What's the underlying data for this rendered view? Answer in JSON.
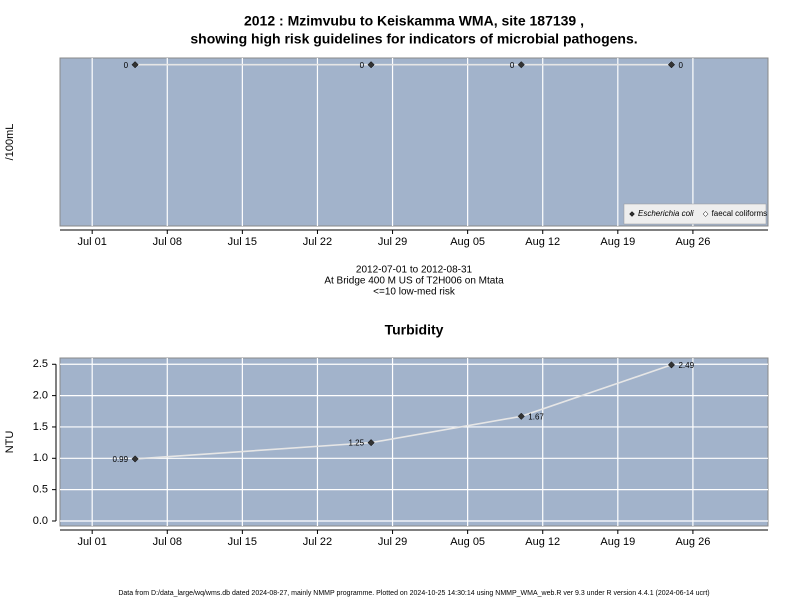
{
  "chart_data": [
    {
      "type": "line",
      "title": [
        "2012 : Mzimvubu to Keiskamma WMA, site 187139 ,",
        "showing high risk guidelines for indicators of microbial pathogens."
      ],
      "ylabel": "/100mL",
      "notes": [
        "2012-07-01 to 2012-08-31",
        "At Bridge 400 M US of T2H006 on Mtata",
        "<=10 low-med risk"
      ],
      "x": [
        "2012-07-05",
        "2012-07-27",
        "2012-08-10",
        "2012-08-24"
      ],
      "series": [
        {
          "name": "Escherichia coli",
          "color": "#333333",
          "values": [
            0,
            0,
            0,
            0
          ]
        },
        {
          "name": "faecal coliforms",
          "color": "#ffffff",
          "values": [
            null,
            null,
            null,
            null
          ]
        }
      ],
      "xlim": [
        "2012-06-28",
        "2012-09-02"
      ],
      "xticks": [
        {
          "value": "2012-07-01",
          "label": "Jul 01"
        },
        {
          "value": "2012-07-08",
          "label": "Jul 08"
        },
        {
          "value": "2012-07-15",
          "label": "Jul 15"
        },
        {
          "value": "2012-07-22",
          "label": "Jul 22"
        },
        {
          "value": "2012-07-29",
          "label": "Jul 29"
        },
        {
          "value": "2012-08-05",
          "label": "Aug 05"
        },
        {
          "value": "2012-08-12",
          "label": "Aug 12"
        },
        {
          "value": "2012-08-19",
          "label": "Aug 19"
        },
        {
          "value": "2012-08-26",
          "label": "Aug 26"
        }
      ],
      "ylim": [
        -24,
        1
      ],
      "legend": "bottom-right",
      "grid": true
    },
    {
      "type": "line",
      "title": [
        "Turbidity"
      ],
      "ylabel": "NTU",
      "x": [
        "2012-07-05",
        "2012-07-27",
        "2012-08-10",
        "2012-08-24"
      ],
      "series": [
        {
          "name": "Turbidity",
          "color": "#333333",
          "values": [
            0.99,
            1.25,
            1.67,
            2.49
          ]
        }
      ],
      "xlim": [
        "2012-06-28",
        "2012-09-02"
      ],
      "xticks": [
        {
          "value": "2012-07-01",
          "label": "Jul 01"
        },
        {
          "value": "2012-07-08",
          "label": "Jul 08"
        },
        {
          "value": "2012-07-15",
          "label": "Jul 15"
        },
        {
          "value": "2012-07-22",
          "label": "Jul 22"
        },
        {
          "value": "2012-07-29",
          "label": "Jul 29"
        },
        {
          "value": "2012-08-05",
          "label": "Aug 05"
        },
        {
          "value": "2012-08-12",
          "label": "Aug 12"
        },
        {
          "value": "2012-08-19",
          "label": "Aug 19"
        },
        {
          "value": "2012-08-26",
          "label": "Aug 26"
        }
      ],
      "ylim": [
        -0.08,
        2.6
      ],
      "yticks": [
        {
          "value": 0,
          "label": "0.0"
        },
        0.5,
        {
          "value": 1,
          "label": "1.0"
        },
        1.5,
        {
          "value": 2,
          "label": "2.0"
        },
        2.5
      ],
      "grid": true
    }
  ],
  "footer": "Data from D:/data_large/wq/wms.db dated 2024-08-27, mainly NMMP programme. Plotted on 2024-10-25 14:30:14 using NMMP_WMA_web.R ver 9.3 under R version 4.4.1 (2024-06-14 ucrt)"
}
